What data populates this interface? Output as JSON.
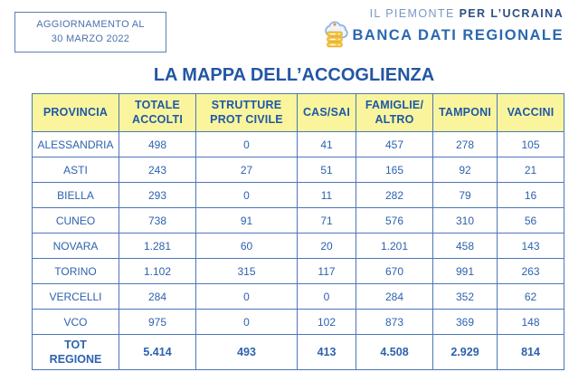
{
  "update_box": {
    "line1": "AGGIORNAMENTO AL",
    "line2": "30 MARZO 2022"
  },
  "brand": {
    "line1_light": "IL PIEMONTE",
    "line1_bold": "PER L’UCRAINA",
    "line2": "BANCA DATI REGIONALE",
    "icon": "cloud-database-icon"
  },
  "title": "LA MAPPA DELL’ACCOGLIENZA",
  "table": {
    "headers": [
      "PROVINCIA",
      "TOTALE\nACCOLTI",
      "STRUTTURE\nPROT CIVILE",
      "CAS/SAI",
      "FAMIGLIE/\nALTRO",
      "TAMPONI",
      "VACCINI"
    ],
    "rows": [
      {
        "provincia": "ALESSANDRIA",
        "values": [
          "498",
          "0",
          "41",
          "457",
          "278",
          "105"
        ]
      },
      {
        "provincia": "ASTI",
        "values": [
          "243",
          "27",
          "51",
          "165",
          "92",
          "21"
        ]
      },
      {
        "provincia": "BIELLA",
        "values": [
          "293",
          "0",
          "11",
          "282",
          "79",
          "16"
        ]
      },
      {
        "provincia": "CUNEO",
        "values": [
          "738",
          "91",
          "71",
          "576",
          "310",
          "56"
        ]
      },
      {
        "provincia": "NOVARA",
        "values": [
          "1.281",
          "60",
          "20",
          "1.201",
          "458",
          "143"
        ]
      },
      {
        "provincia": "TORINO",
        "values": [
          "1.102",
          "315",
          "117",
          "670",
          "991",
          "263"
        ]
      },
      {
        "provincia": "VERCELLI",
        "values": [
          "284",
          "0",
          "0",
          "284",
          "352",
          "62"
        ]
      },
      {
        "provincia": "VCO",
        "values": [
          "975",
          "0",
          "102",
          "873",
          "369",
          "148"
        ]
      }
    ],
    "total_row": {
      "label": "TOT\nREGIONE",
      "values": [
        "5.414",
        "493",
        "413",
        "4.508",
        "2.929",
        "814"
      ]
    }
  },
  "colors": {
    "header_bg": "#FAF59C",
    "table_border": "#4B77B8",
    "cell_text": "#2D62AE",
    "header_text": "#1D58A8",
    "title_text": "#2456A4",
    "brand_light": "#7B97C7",
    "brand_dark": "#2D5086",
    "brand_blue": "#2A68AE",
    "server_gold": "#F2C84C"
  },
  "chart_data": {
    "type": "table",
    "title": "LA MAPPA DELL’ACCOGLIENZA",
    "subtitle": "AGGIORNAMENTO AL 30 MARZO 2022",
    "columns": [
      "PROVINCIA",
      "TOTALE ACCOLTI",
      "STRUTTURE PROT CIVILE",
      "CAS/SAI",
      "FAMIGLIE/ALTRO",
      "TAMPONI",
      "VACCINI"
    ],
    "rows": [
      [
        "ALESSANDRIA",
        498,
        0,
        41,
        457,
        278,
        105
      ],
      [
        "ASTI",
        243,
        27,
        51,
        165,
        92,
        21
      ],
      [
        "BIELLA",
        293,
        0,
        11,
        282,
        79,
        16
      ],
      [
        "CUNEO",
        738,
        91,
        71,
        576,
        310,
        56
      ],
      [
        "NOVARA",
        1281,
        60,
        20,
        1201,
        458,
        143
      ],
      [
        "TORINO",
        1102,
        315,
        117,
        670,
        991,
        263
      ],
      [
        "VERCELLI",
        284,
        0,
        0,
        284,
        352,
        62
      ],
      [
        "VCO",
        975,
        0,
        102,
        873,
        369,
        148
      ],
      [
        "TOT REGIONE",
        5414,
        493,
        413,
        4508,
        2929,
        814
      ]
    ]
  }
}
